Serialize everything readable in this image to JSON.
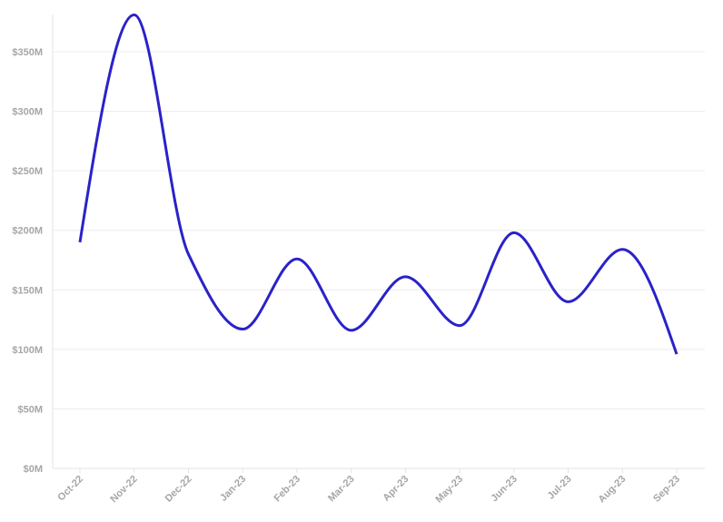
{
  "chart_data": {
    "type": "line",
    "title": "",
    "xlabel": "",
    "ylabel": "",
    "categories": [
      "Oct-22",
      "Nov-22",
      "Dec-22",
      "Jan-23",
      "Feb-23",
      "Mar-23",
      "Apr-23",
      "May-23",
      "Jun-23",
      "Jul-23",
      "Aug-23",
      "Sep-23"
    ],
    "series": [
      {
        "values": [
          190,
          381,
          180,
          117,
          176,
          116,
          161,
          120,
          198,
          140,
          184,
          96
        ]
      }
    ],
    "ylim": [
      0,
      380
    ],
    "yticks": [
      0,
      50,
      100,
      150,
      200,
      250,
      300,
      350
    ],
    "ytick_labels": [
      "$0M",
      "$50M",
      "$100M",
      "$150M",
      "$200M",
      "$250M",
      "$300M",
      "$350M"
    ],
    "unit": "$M",
    "grid": true,
    "smooth": true,
    "line_color": "#2a22c8"
  }
}
